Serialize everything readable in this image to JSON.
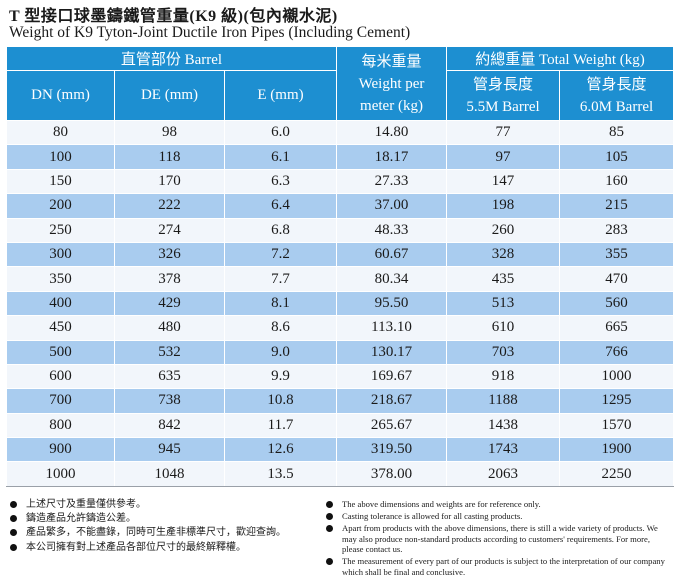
{
  "title": {
    "zh": "T 型接口球墨鑄鐵管重量(K9 級)(包內襯水泥)",
    "en": "Weight of K9 Tyton-Joint Ductile Iron Pipes (Including Cement)"
  },
  "table": {
    "header": {
      "barrel_group": "直管部份 Barrel",
      "per_meter_zh": "每米重量",
      "per_meter_en_1": "Weight per",
      "per_meter_en_2": "meter (kg)",
      "total_group": "約總重量 Total Weight (kg)",
      "dn": "DN (mm)",
      "de": "DE (mm)",
      "e": "E (mm)",
      "len55_zh": "管身長度",
      "len55_en": "5.5M Barrel",
      "len60_zh": "管身長度",
      "len60_en": "6.0M Barrel"
    },
    "rows": [
      [
        "80",
        "98",
        "6.0",
        "14.80",
        "77",
        "85"
      ],
      [
        "100",
        "118",
        "6.1",
        "18.17",
        "97",
        "105"
      ],
      [
        "150",
        "170",
        "6.3",
        "27.33",
        "147",
        "160"
      ],
      [
        "200",
        "222",
        "6.4",
        "37.00",
        "198",
        "215"
      ],
      [
        "250",
        "274",
        "6.8",
        "48.33",
        "260",
        "283"
      ],
      [
        "300",
        "326",
        "7.2",
        "60.67",
        "328",
        "355"
      ],
      [
        "350",
        "378",
        "7.7",
        "80.34",
        "435",
        "470"
      ],
      [
        "400",
        "429",
        "8.1",
        "95.50",
        "513",
        "560"
      ],
      [
        "450",
        "480",
        "8.6",
        "113.10",
        "610",
        "665"
      ],
      [
        "500",
        "532",
        "9.0",
        "130.17",
        "703",
        "766"
      ],
      [
        "600",
        "635",
        "9.9",
        "169.67",
        "918",
        "1000"
      ],
      [
        "700",
        "738",
        "10.8",
        "218.67",
        "1188",
        "1295"
      ],
      [
        "800",
        "842",
        "11.7",
        "265.67",
        "1438",
        "1570"
      ],
      [
        "900",
        "945",
        "12.6",
        "319.50",
        "1743",
        "1900"
      ],
      [
        "1000",
        "1048",
        "13.5",
        "378.00",
        "2063",
        "2250"
      ]
    ]
  },
  "notes": {
    "zh": [
      "上述尺寸及重量僅供參考。",
      "鑄造產品允許鑄造公差。",
      "產品繁多，不能盡錄，同時可生產非標準尺寸，歡迎查詢。",
      "本公司擁有對上述產品各部位尺寸的最終解釋權。"
    ],
    "en": [
      "The above dimensions and weights are for reference only.",
      "Casting tolerance is allowed for all casting products.",
      "Apart from products with the above dimensions, there is still a wide variety of products. We may also produce non-standard products according to customers' requirements. For more, please contact us.",
      "The measurement of every part of our products is subject to the interpretation of our company which shall be final and conclusive."
    ]
  },
  "colors": {
    "header_blue": "#1d8fd1",
    "row_light": "#f2f6fb",
    "row_blue": "#a9ccef"
  }
}
